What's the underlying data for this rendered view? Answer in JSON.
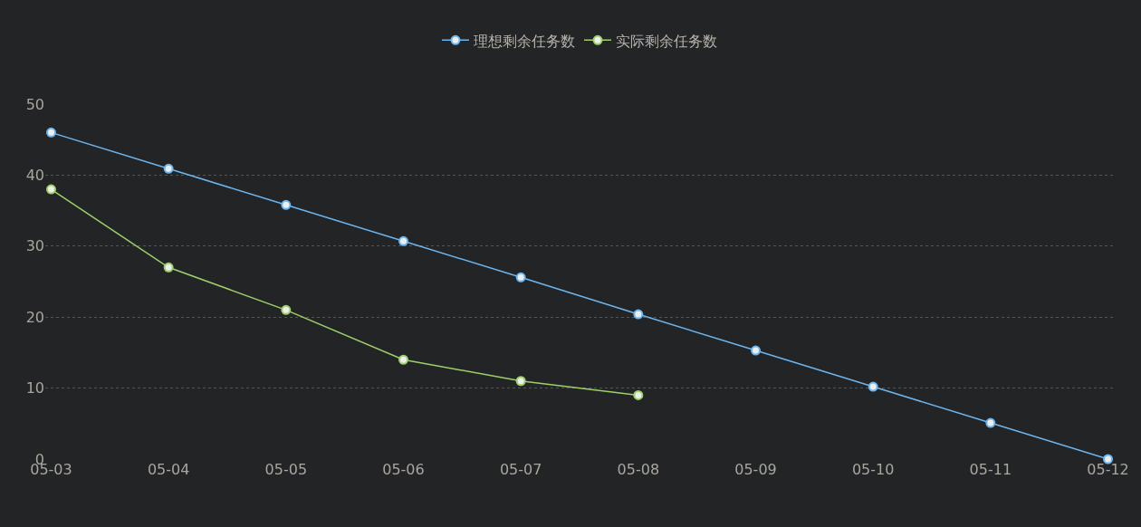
{
  "chart_data": {
    "type": "line",
    "categories": [
      "05-03",
      "05-04",
      "05-05",
      "05-06",
      "05-07",
      "05-08",
      "05-09",
      "05-10",
      "05-11",
      "05-12"
    ],
    "series": [
      {
        "name": "理想剩余任务数",
        "color": "#6cb6f0",
        "values": [
          46,
          40.9,
          35.8,
          30.7,
          25.6,
          20.4,
          15.3,
          10.2,
          5.1,
          0
        ]
      },
      {
        "name": "实际剩余任务数",
        "color": "#9ed06a",
        "values": [
          38,
          27,
          21,
          14,
          11,
          9,
          null,
          null,
          null,
          null
        ]
      }
    ],
    "ylim": [
      0,
      50
    ],
    "yticks": [
      0,
      10,
      20,
      30,
      40,
      50
    ],
    "grid": "y",
    "legend": "top",
    "marker": "circle",
    "line_style": "solid"
  }
}
